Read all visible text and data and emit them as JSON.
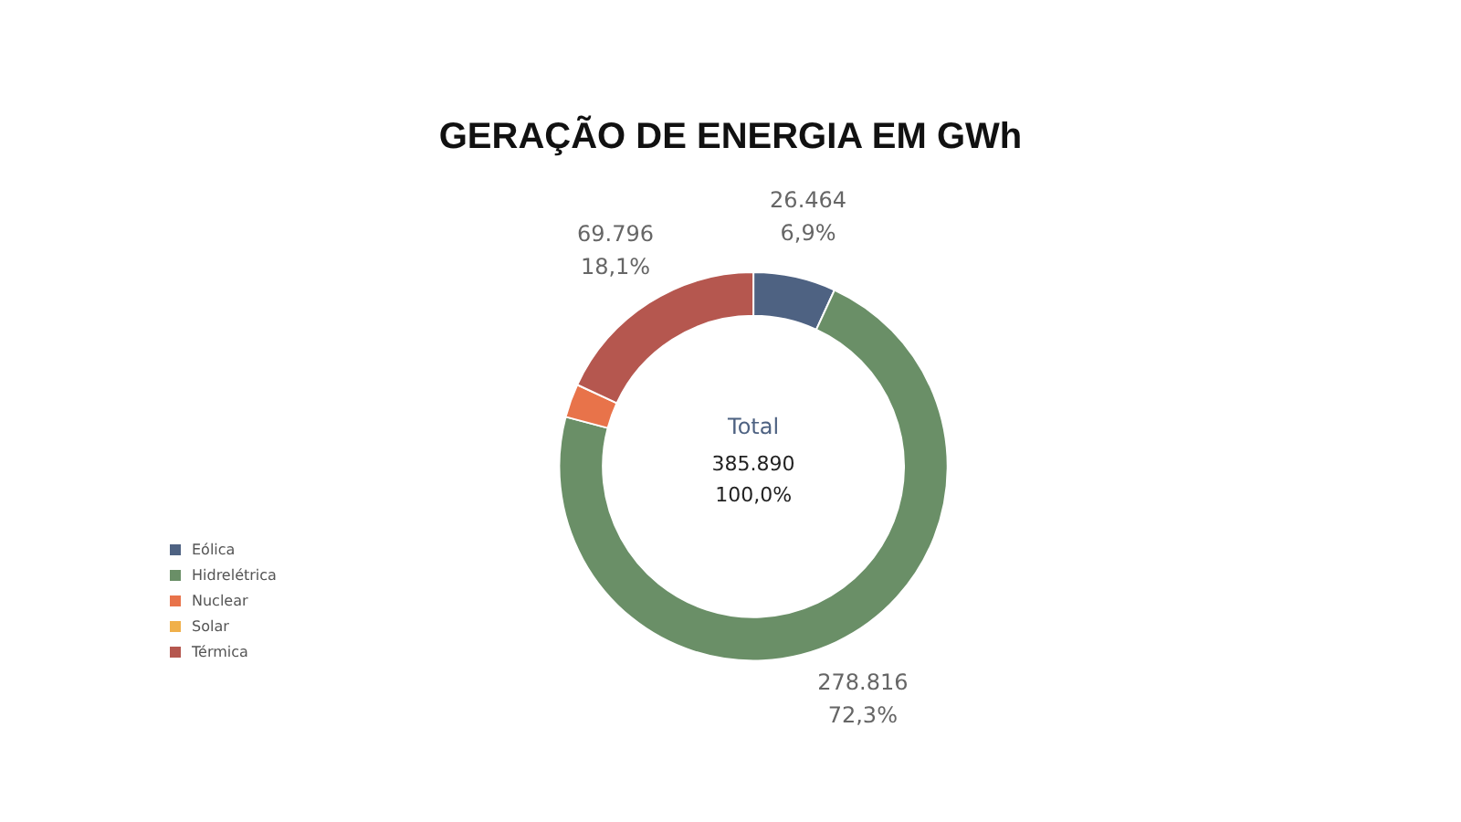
{
  "chart_data": {
    "type": "donut",
    "title": "GERAÇÃO DE ENERGIA EM GWh",
    "categories": [
      "Eólica",
      "Hidrelétrica",
      "Nuclear",
      "Solar",
      "Térmica"
    ],
    "values": [
      26464,
      278816,
      10800,
      null,
      69796
    ],
    "colors": [
      "#4e6282",
      "#6a8f67",
      "#e8734a",
      "#f0b04a",
      "#b5574f"
    ],
    "value_labels": [
      "26.464\n6,9%",
      "278.816\n72,3%",
      null,
      null,
      "69.796\n18,1%"
    ],
    "annotations": [
      "Total",
      "385.890\n100,0%"
    ],
    "legend": "bottom left"
  }
}
